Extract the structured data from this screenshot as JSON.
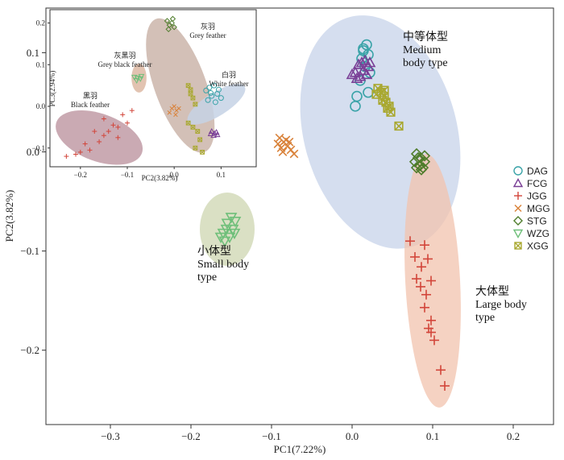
{
  "chart_data": [
    {
      "type": "scatter",
      "xlabel": "PC1(7.22%)",
      "ylabel": "PC2(3.82%)",
      "xlim": [
        -0.38,
        0.25
      ],
      "ylim": [
        -0.275,
        0.145
      ],
      "xticks": [
        -0.3,
        -0.2,
        -0.1,
        0.0,
        0.1,
        0.2
      ],
      "xtick_labels": [
        "−0.3",
        "−0.2",
        "−0.1",
        "0.0",
        "0.1",
        "0.2"
      ],
      "yticks": [
        0.1,
        0.0,
        -0.1,
        -0.2
      ],
      "ytick_labels": [
        "0.1",
        "0.0",
        "−0.1",
        "−0.2"
      ],
      "legend_position": "right",
      "legend": [
        {
          "name": "DAG",
          "marker": "circle",
          "color": "#3aa3a8"
        },
        {
          "name": "FCG",
          "marker": "triangle-up",
          "color": "#7a3f96"
        },
        {
          "name": "JGG",
          "marker": "plus",
          "color": "#d2453a"
        },
        {
          "name": "MGG",
          "marker": "x",
          "color": "#d9823a"
        },
        {
          "name": "STG",
          "marker": "diamond",
          "color": "#4f7d2c"
        },
        {
          "name": "WZG",
          "marker": "triangle-down",
          "color": "#6fbf7a"
        },
        {
          "name": "XGG",
          "marker": "boxx",
          "color": "#a9a830"
        }
      ],
      "groups": [
        {
          "line1": "中等体型",
          "line2": "Medium",
          "line3": "body type",
          "color": "#c7d3ea",
          "center": [
            0.035,
            0.02
          ],
          "radii": [
            0.095,
            0.12
          ],
          "rotation": -15
        },
        {
          "line1": "小体型",
          "line2": "Small body",
          "line3": "type",
          "color": "#cdd6b0",
          "center": [
            -0.155,
            -0.078
          ],
          "radii": [
            0.034,
            0.037
          ],
          "rotation": 0
        },
        {
          "line1": "大体型",
          "line2": "Large body",
          "line3": "type",
          "color": "#f2c3ad",
          "center": [
            0.1,
            -0.13
          ],
          "radii": [
            0.034,
            0.128
          ],
          "rotation": -3
        }
      ],
      "series": [
        {
          "name": "DAG",
          "points": [
            [
              0.018,
              0.108
            ],
            [
              0.014,
              0.104
            ],
            [
              0.02,
              0.098
            ],
            [
              0.012,
              0.094
            ],
            [
              0.016,
              0.086
            ],
            [
              0.022,
              0.08
            ],
            [
              0.01,
              0.072
            ],
            [
              0.006,
              0.056
            ],
            [
              0.02,
              0.06
            ],
            [
              0.004,
              0.046
            ],
            [
              0.014,
              0.102
            ]
          ]
        },
        {
          "name": "FCG",
          "points": [
            [
              0.016,
              0.092
            ],
            [
              0.008,
              0.088
            ],
            [
              0.02,
              0.086
            ],
            [
              0.004,
              0.08
            ],
            [
              0.014,
              0.082
            ],
            [
              0.01,
              0.076
            ],
            [
              0.018,
              0.078
            ],
            [
              0.0,
              0.078
            ],
            [
              0.006,
              0.074
            ],
            [
              0.012,
              0.09
            ],
            [
              0.022,
              0.09
            ]
          ]
        },
        {
          "name": "JGG",
          "points": [
            [
              0.072,
              -0.09
            ],
            [
              0.09,
              -0.094
            ],
            [
              0.078,
              -0.106
            ],
            [
              0.094,
              -0.108
            ],
            [
              0.086,
              -0.116
            ],
            [
              0.08,
              -0.128
            ],
            [
              0.098,
              -0.13
            ],
            [
              0.085,
              -0.136
            ],
            [
              0.092,
              -0.144
            ],
            [
              0.09,
              -0.157
            ],
            [
              0.098,
              -0.17
            ],
            [
              0.095,
              -0.178
            ],
            [
              0.102,
              -0.19
            ],
            [
              0.098,
              -0.182
            ],
            [
              0.11,
              -0.22
            ],
            [
              0.115,
              -0.236
            ]
          ]
        },
        {
          "name": "MGG",
          "points": [
            [
              -0.09,
              0.014
            ],
            [
              -0.085,
              0.01
            ],
            [
              -0.08,
              0.006
            ],
            [
              -0.088,
              0.004
            ],
            [
              -0.076,
              0.002
            ],
            [
              -0.082,
              0.012
            ],
            [
              -0.092,
              0.008
            ],
            [
              -0.072,
              -0.002
            ],
            [
              -0.078,
              0.01
            ],
            [
              -0.086,
              0.0
            ]
          ]
        },
        {
          "name": "STG",
          "points": [
            [
              0.08,
              -0.002
            ],
            [
              0.085,
              -0.006
            ],
            [
              0.09,
              -0.01
            ],
            [
              0.084,
              -0.014
            ],
            [
              0.078,
              -0.01
            ],
            [
              0.088,
              -0.016
            ],
            [
              0.082,
              -0.006
            ],
            [
              0.09,
              -0.004
            ],
            [
              0.086,
              -0.018
            ],
            [
              0.08,
              -0.016
            ]
          ]
        },
        {
          "name": "WZG",
          "points": [
            [
              -0.15,
              -0.066
            ],
            [
              -0.145,
              -0.07
            ],
            [
              -0.155,
              -0.072
            ],
            [
              -0.148,
              -0.078
            ],
            [
              -0.16,
              -0.082
            ],
            [
              -0.152,
              -0.086
            ],
            [
              -0.158,
              -0.09
            ],
            [
              -0.146,
              -0.082
            ],
            [
              -0.163,
              -0.086
            ],
            [
              -0.156,
              -0.078
            ]
          ]
        },
        {
          "name": "XGG",
          "points": [
            [
              0.032,
              0.064
            ],
            [
              0.036,
              0.06
            ],
            [
              0.04,
              0.056
            ],
            [
              0.03,
              0.058
            ],
            [
              0.042,
              0.05
            ],
            [
              0.046,
              0.046
            ],
            [
              0.038,
              0.052
            ],
            [
              0.044,
              0.044
            ],
            [
              0.048,
              0.04
            ],
            [
              0.04,
              0.062
            ],
            [
              0.058,
              0.026
            ]
          ]
        }
      ]
    },
    {
      "type": "scatter",
      "xlabel": "PC2(3.82%)",
      "ylabel": "PC3(2.94%)",
      "xlim": [
        -0.265,
        0.175
      ],
      "ylim": [
        -0.145,
        0.232
      ],
      "xticks": [
        -0.2,
        -0.1,
        0.0,
        0.1
      ],
      "xtick_labels": [
        "−0.2",
        "−0.1",
        "0.0",
        "0.1"
      ],
      "yticks": [
        0.2,
        0.1,
        0.0,
        -0.1
      ],
      "ytick_labels": [
        "0.2",
        "0.1",
        "0.0",
        "−0.1"
      ],
      "groups": [
        {
          "line1": "灰羽",
          "line2": "Grey feather",
          "color": "#cbb5aa",
          "center": [
            0.013,
            0.05
          ],
          "radii": [
            0.055,
            0.17
          ],
          "rotation": -20
        },
        {
          "line1": "灰黑羽",
          "line2": "Grey black feather",
          "color": "#ddb9a3",
          "center": [
            -0.075,
            0.068
          ],
          "radii": [
            0.016,
            0.035
          ],
          "rotation": 0
        },
        {
          "line1": "白羽",
          "line2": "White feather",
          "color": "#c6d2e5",
          "center": [
            0.09,
            0.005
          ],
          "radii": [
            0.025,
            0.08
          ],
          "rotation": 58
        },
        {
          "line1": "黑羽",
          "line2": "Black feather",
          "color": "#c19ba6",
          "center": [
            -0.16,
            -0.075
          ],
          "radii": [
            0.097,
            0.057
          ],
          "rotation": 20
        }
      ],
      "series": [
        {
          "name": "DAG",
          "points": [
            [
              0.075,
              0.045
            ],
            [
              0.085,
              0.05
            ],
            [
              0.095,
              0.04
            ],
            [
              0.068,
              0.038
            ],
            [
              0.08,
              0.025
            ],
            [
              0.092,
              0.03
            ],
            [
              0.1,
              0.02
            ],
            [
              0.072,
              0.015
            ],
            [
              0.088,
              0.01
            ],
            [
              0.078,
              0.032
            ]
          ]
        },
        {
          "name": "FCG",
          "points": [
            [
              0.08,
              -0.06
            ],
            [
              0.086,
              -0.065
            ],
            [
              0.09,
              -0.062
            ],
            [
              0.084,
              -0.07
            ],
            [
              0.092,
              -0.068
            ],
            [
              0.078,
              -0.066
            ]
          ]
        },
        {
          "name": "JGG",
          "points": [
            [
              -0.23,
              -0.12
            ],
            [
              -0.21,
              -0.115
            ],
            [
              -0.2,
              -0.11
            ],
            [
              -0.18,
              -0.105
            ],
            [
              -0.19,
              -0.09
            ],
            [
              -0.16,
              -0.085
            ],
            [
              -0.15,
              -0.07
            ],
            [
              -0.14,
              -0.06
            ],
            [
              -0.17,
              -0.06
            ],
            [
              -0.13,
              -0.045
            ],
            [
              -0.12,
              -0.05
            ],
            [
              -0.1,
              -0.04
            ],
            [
              -0.11,
              -0.02
            ],
            [
              -0.15,
              -0.03
            ],
            [
              -0.12,
              -0.075
            ],
            [
              -0.09,
              -0.01
            ]
          ]
        },
        {
          "name": "MGG",
          "points": [
            [
              -0.005,
              -0.005
            ],
            [
              0.005,
              -0.01
            ],
            [
              0.0,
              0.0
            ],
            [
              -0.01,
              -0.015
            ],
            [
              0.01,
              -0.005
            ],
            [
              0.003,
              -0.02
            ]
          ]
        },
        {
          "name": "STG",
          "points": [
            [
              -0.015,
              0.205
            ],
            [
              -0.005,
              0.2
            ],
            [
              -0.01,
              0.195
            ],
            [
              0.0,
              0.19
            ],
            [
              -0.012,
              0.185
            ],
            [
              -0.003,
              0.21
            ]
          ]
        },
        {
          "name": "WZG",
          "points": [
            [
              -0.085,
              0.07
            ],
            [
              -0.078,
              0.068
            ],
            [
              -0.072,
              0.066
            ],
            [
              -0.08,
              0.062
            ],
            [
              -0.07,
              0.072
            ]
          ]
        },
        {
          "name": "XGG",
          "points": [
            [
              0.03,
              0.05
            ],
            [
              0.035,
              0.04
            ],
            [
              0.04,
              0.02
            ],
            [
              0.045,
              0.005
            ],
            [
              0.03,
              -0.04
            ],
            [
              0.04,
              -0.05
            ],
            [
              0.05,
              -0.06
            ],
            [
              0.055,
              -0.08
            ],
            [
              0.045,
              -0.1
            ],
            [
              0.06,
              -0.11
            ],
            [
              0.035,
              0.03
            ]
          ]
        }
      ]
    }
  ]
}
